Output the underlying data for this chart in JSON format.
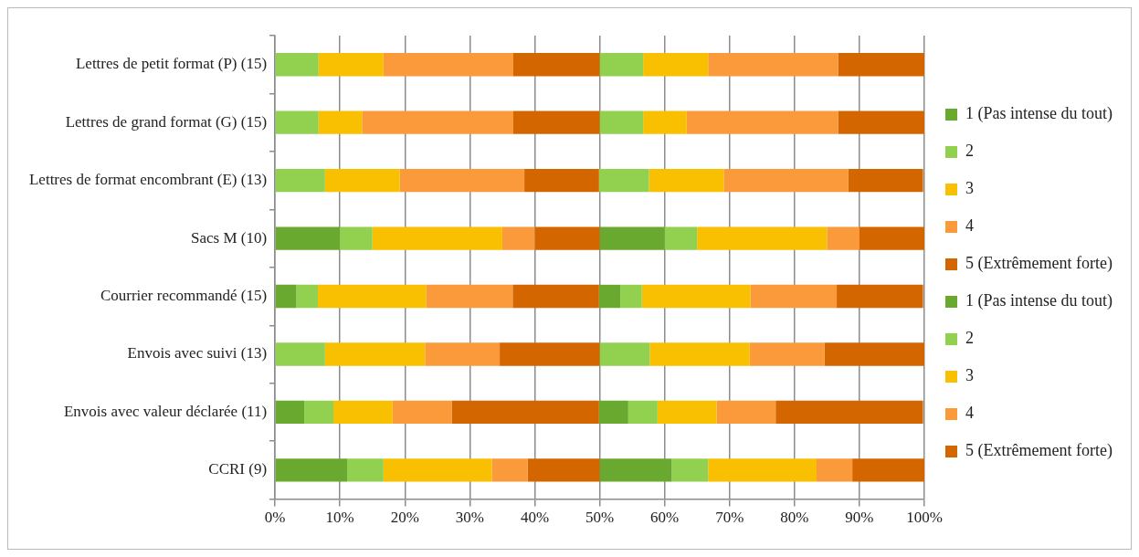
{
  "chart_data": {
    "type": "bar",
    "orientation": "horizontal",
    "stacked": true,
    "categories": [
      "Lettres de petit format (P) (15)",
      "Lettres de grand format (G) (15)",
      "Lettres de format encombrant (E) (13)",
      "Sacs M (10)",
      "Courrier recommandé (15)",
      "Envois avec suivi (13)",
      "Envois avec valeur déclarée (11)",
      "CCRI (9)"
    ],
    "series": [
      {
        "name": "1 (Pas intense du tout)",
        "color": "#6aa92f",
        "values": [
          0,
          0,
          0,
          10,
          3.3,
          0,
          4.5,
          11.1
        ]
      },
      {
        "name": "2",
        "color": "#92d050",
        "values": [
          6.7,
          6.7,
          7.7,
          5,
          3.3,
          7.7,
          4.5,
          5.6
        ]
      },
      {
        "name": "3",
        "color": "#f8c000",
        "values": [
          10,
          6.7,
          11.5,
          20,
          16.7,
          15.4,
          9.1,
          16.7
        ]
      },
      {
        "name": "4",
        "color": "#fb9a3a",
        "values": [
          20,
          23.3,
          19.2,
          5,
          13.3,
          11.5,
          9.1,
          5.5
        ]
      },
      {
        "name": "5 (Extrêmement forte)",
        "color": "#d46600",
        "values": [
          13.3,
          13.3,
          11.5,
          10,
          13.3,
          15.4,
          22.7,
          11.1
        ]
      },
      {
        "name": "1 (Pas intense du tout)",
        "color": "#6aa92f",
        "values": [
          0,
          0,
          0,
          10,
          3.3,
          0,
          4.5,
          11.1
        ]
      },
      {
        "name": "2",
        "color": "#92d050",
        "values": [
          6.7,
          6.7,
          7.7,
          5,
          3.3,
          7.7,
          4.5,
          5.6
        ]
      },
      {
        "name": "3",
        "color": "#f8c000",
        "values": [
          10,
          6.7,
          11.5,
          20,
          16.7,
          15.4,
          9.1,
          16.7
        ]
      },
      {
        "name": "4",
        "color": "#fb9a3a",
        "values": [
          20,
          23.3,
          19.2,
          5,
          13.3,
          11.5,
          9.1,
          5.5
        ]
      },
      {
        "name": "5 (Extrêmement forte)",
        "color": "#d46600",
        "values": [
          13.3,
          13.3,
          11.5,
          10,
          13.3,
          15.4,
          22.7,
          11.1
        ]
      }
    ],
    "xlim": [
      0,
      100
    ],
    "xticks": [
      {
        "value": 0,
        "label": "0%"
      },
      {
        "value": 10,
        "label": "10%"
      },
      {
        "value": 20,
        "label": "20%"
      },
      {
        "value": 30,
        "label": "30%"
      },
      {
        "value": 40,
        "label": "40%"
      },
      {
        "value": 50,
        "label": "50%"
      },
      {
        "value": 60,
        "label": "60%"
      },
      {
        "value": 70,
        "label": "70%"
      },
      {
        "value": 80,
        "label": "80%"
      },
      {
        "value": 90,
        "label": "90%"
      },
      {
        "value": 100,
        "label": "100%"
      }
    ],
    "grid": "x",
    "legend": "right"
  }
}
